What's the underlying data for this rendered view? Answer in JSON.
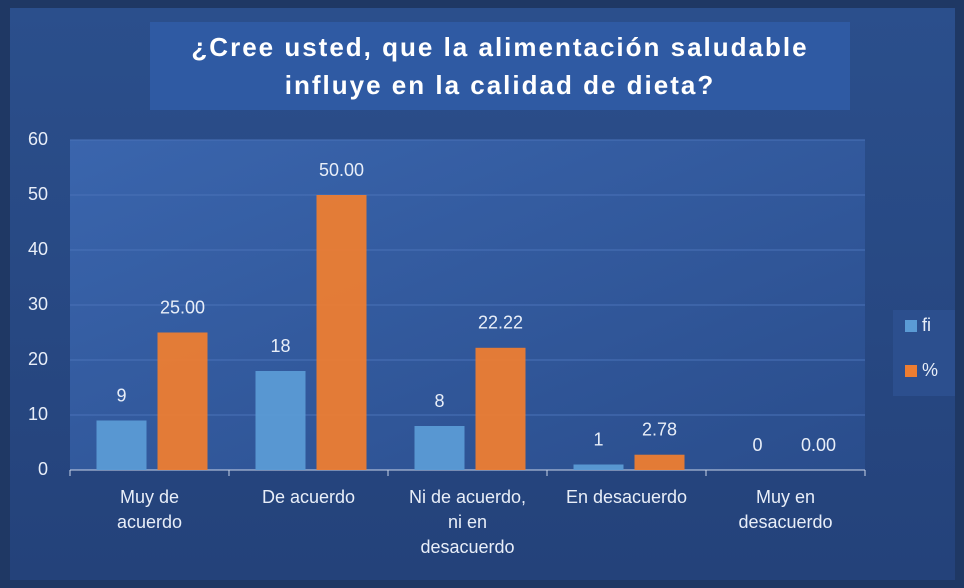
{
  "chart_data": {
    "type": "bar",
    "title": "¿Cree usted, que la alimentación saludable influye en la calidad de dieta?",
    "categories": [
      "Muy de acuerdo",
      "De acuerdo",
      "Ni de acuerdo, ni en desacuerdo",
      "En desacuerdo",
      "Muy en desacuerdo"
    ],
    "series": [
      {
        "name": "fi",
        "color": "#5b9bd5",
        "values": [
          9,
          18,
          8,
          1,
          0
        ]
      },
      {
        "name": "%",
        "color": "#ed7d31",
        "values": [
          25,
          50,
          22.22,
          2.78,
          0
        ],
        "value_labels": [
          "25.00",
          "50.00",
          "22.22",
          "2.78",
          "0.00"
        ]
      }
    ],
    "ylim": [
      0,
      60
    ],
    "yticks": [
      0,
      10,
      20,
      30,
      40,
      50,
      60
    ],
    "grid": true,
    "legend": "right"
  }
}
